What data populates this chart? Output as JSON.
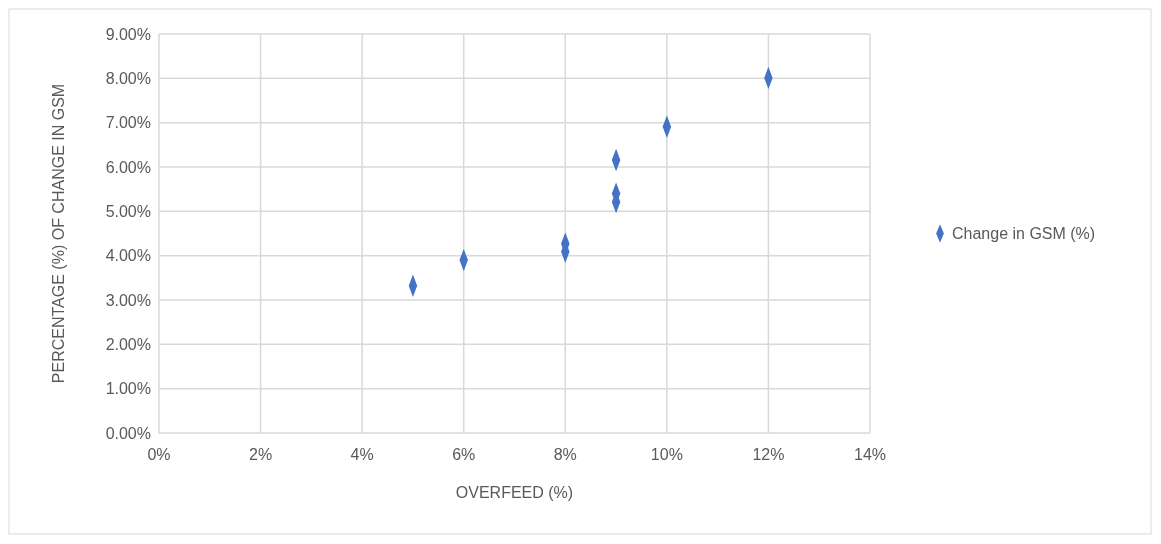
{
  "chart_data": {
    "type": "scatter",
    "xlabel": "OVERFEED (%)",
    "ylabel": "PERCENTAGE (%) OF CHANGE IN GSM",
    "xlim": [
      0,
      14
    ],
    "xticks": [
      {
        "value": 0,
        "label": "0%"
      },
      {
        "value": 2,
        "label": "2%"
      },
      {
        "value": 4,
        "label": "4%"
      },
      {
        "value": 6,
        "label": "6%"
      },
      {
        "value": 8,
        "label": "8%"
      },
      {
        "value": 10,
        "label": "10%"
      },
      {
        "value": 12,
        "label": "12%"
      },
      {
        "value": 14,
        "label": "14%"
      }
    ],
    "ylim": [
      0,
      9
    ],
    "yticks": [
      {
        "value": 0,
        "label": "0.00%"
      },
      {
        "value": 1,
        "label": "1.00%"
      },
      {
        "value": 2,
        "label": "2.00%"
      },
      {
        "value": 3,
        "label": "3.00%"
      },
      {
        "value": 4,
        "label": "4.00%"
      },
      {
        "value": 5,
        "label": "5.00%"
      },
      {
        "value": 6,
        "label": "6.00%"
      },
      {
        "value": 7,
        "label": "7.00%"
      },
      {
        "value": 8,
        "label": "8.00%"
      },
      {
        "value": 9,
        "label": "9.00%"
      }
    ],
    "grid": true,
    "legend": "right",
    "marker": "diamond",
    "series": [
      {
        "name": "Change in GSM (%)",
        "color": "#4472c4",
        "x": [
          5,
          6,
          8,
          8,
          9,
          9,
          9,
          10,
          12
        ],
        "values": [
          3.32,
          3.9,
          4.27,
          4.09,
          6.16,
          5.4,
          5.21,
          6.91,
          8.01
        ]
      }
    ]
  }
}
